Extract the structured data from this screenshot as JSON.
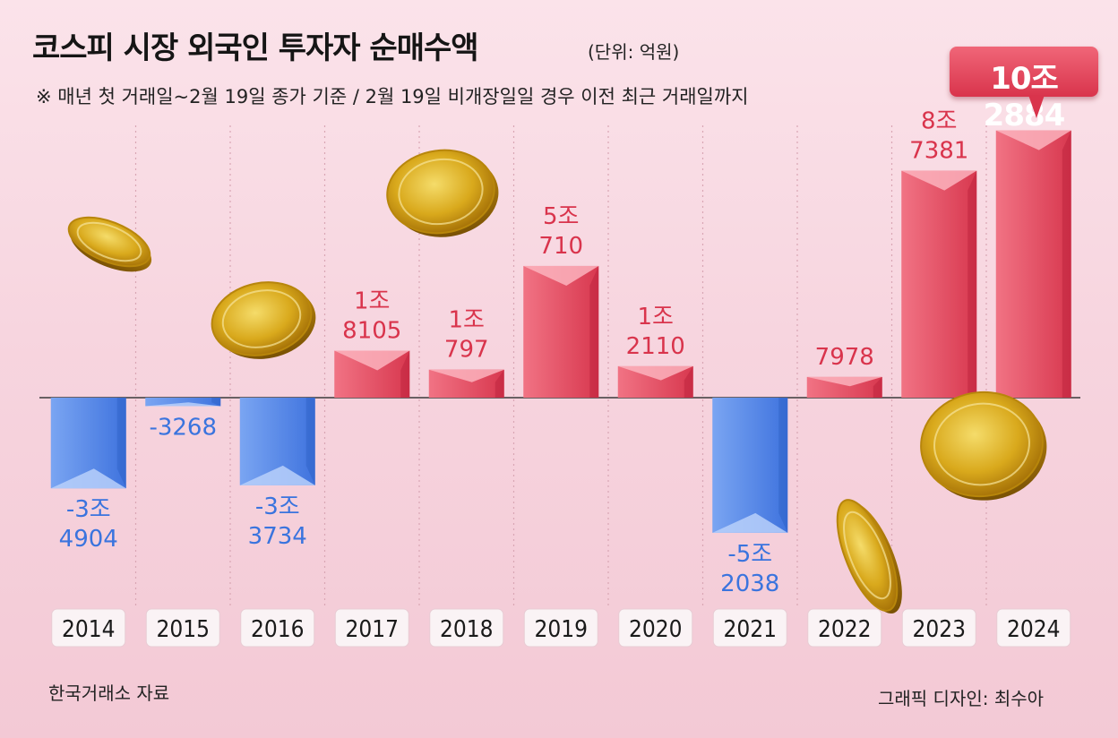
{
  "title": "코스피 시장 외국인 투자자 순매수액",
  "unit_note": "(단위: 억원)",
  "footnote": "※ 매년 첫 거래일~2월 19일 종가 기준 / 2월 19일 비개장일일 경우 이전 최근 거래일까지",
  "source": "한국거래소 자료",
  "credit": "그래픽 디자인: 최수아",
  "highlight_label": "10조2884",
  "colors": {
    "positive": "#e85468",
    "negative": "#4f86e8",
    "positive_text": "#d9344c",
    "negative_text": "#3a74de"
  },
  "chart_data": {
    "type": "bar",
    "categories": [
      "2014",
      "2015",
      "2016",
      "2017",
      "2018",
      "2019",
      "2020",
      "2021",
      "2022",
      "2023",
      "2024"
    ],
    "values": [
      -34904,
      -3268,
      -33734,
      18105,
      10797,
      50710,
      12110,
      -52038,
      7978,
      87381,
      102884
    ],
    "data_labels": [
      [
        "-3조",
        "4904"
      ],
      [
        "-3268"
      ],
      [
        "-3조",
        "3734"
      ],
      [
        "1조",
        "8105"
      ],
      [
        "1조",
        "797"
      ],
      [
        "5조",
        "710"
      ],
      [
        "1조",
        "2110"
      ],
      [
        "-5조",
        "2038"
      ],
      [
        "7978"
      ],
      [
        "8조",
        "7381"
      ],
      []
    ],
    "ylabel": "",
    "xlabel": "",
    "ylim": [
      -52038,
      102884
    ],
    "grid": "vertical dotted separators"
  }
}
